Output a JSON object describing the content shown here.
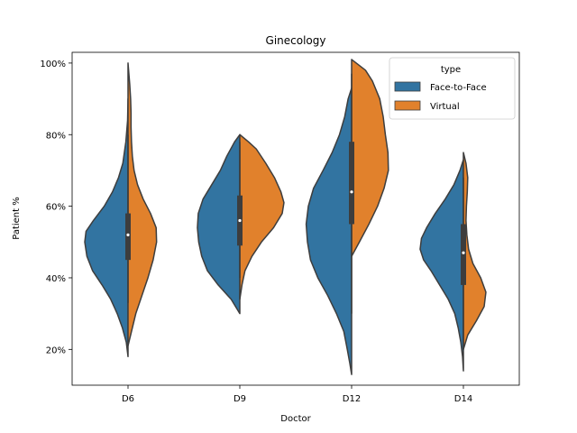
{
  "chart_data": {
    "type": "violin",
    "title": "Ginecology",
    "xlabel": "Doctor",
    "ylabel": "Patient %",
    "categories": [
      "D6",
      "D9",
      "D12",
      "D14"
    ],
    "yticks": [
      "20%",
      "40%",
      "60%",
      "80%",
      "100%"
    ],
    "ytick_values": [
      20,
      40,
      60,
      80,
      100
    ],
    "ylim": [
      10,
      103
    ],
    "split": true,
    "grid": false,
    "legend": {
      "title": "type",
      "placement": "top-right",
      "entries": [
        {
          "name": "Face-to-Face",
          "color": "#3274a1"
        },
        {
          "name": "Virtual",
          "color": "#e1812c"
        }
      ]
    },
    "series": [
      {
        "name": "Face-to-Face",
        "color": "#3274a1",
        "violins": [
          {
            "profile": [
              [
                18,
                0
              ],
              [
                22,
                0.04
              ],
              [
                26,
                0.13
              ],
              [
                30,
                0.25
              ],
              [
                34,
                0.4
              ],
              [
                38,
                0.6
              ],
              [
                42,
                0.82
              ],
              [
                46,
                0.95
              ],
              [
                50,
                1.0
              ],
              [
                53,
                0.97
              ],
              [
                56,
                0.8
              ],
              [
                60,
                0.55
              ],
              [
                64,
                0.36
              ],
              [
                68,
                0.22
              ],
              [
                72,
                0.12
              ],
              [
                78,
                0.05
              ],
              [
                84,
                0.01
              ],
              [
                90,
                0
              ]
            ]
          },
          {
            "profile": [
              [
                30,
                0
              ],
              [
                34,
                0.2
              ],
              [
                38,
                0.5
              ],
              [
                42,
                0.75
              ],
              [
                46,
                0.88
              ],
              [
                50,
                0.95
              ],
              [
                54,
                0.98
              ],
              [
                58,
                0.96
              ],
              [
                62,
                0.85
              ],
              [
                66,
                0.65
              ],
              [
                70,
                0.45
              ],
              [
                74,
                0.3
              ],
              [
                78,
                0.12
              ],
              [
                80,
                0
              ]
            ]
          },
          {
            "profile": [
              [
                13,
                0
              ],
              [
                16,
                0.04
              ],
              [
                20,
                0.1
              ],
              [
                25,
                0.18
              ],
              [
                30,
                0.35
              ],
              [
                35,
                0.55
              ],
              [
                40,
                0.78
              ],
              [
                45,
                0.95
              ],
              [
                50,
                1.02
              ],
              [
                55,
                1.05
              ],
              [
                60,
                1.0
              ],
              [
                65,
                0.88
              ],
              [
                70,
                0.66
              ],
              [
                75,
                0.45
              ],
              [
                80,
                0.28
              ],
              [
                85,
                0.16
              ],
              [
                90,
                0.08
              ],
              [
                93,
                0
              ]
            ]
          },
          {
            "profile": [
              [
                14,
                0
              ],
              [
                18,
                0.02
              ],
              [
                22,
                0.06
              ],
              [
                26,
                0.12
              ],
              [
                30,
                0.2
              ],
              [
                34,
                0.35
              ],
              [
                38,
                0.55
              ],
              [
                42,
                0.75
              ],
              [
                45,
                0.92
              ],
              [
                48,
                1.0
              ],
              [
                51,
                0.97
              ],
              [
                54,
                0.85
              ],
              [
                58,
                0.65
              ],
              [
                62,
                0.42
              ],
              [
                66,
                0.22
              ],
              [
                70,
                0.08
              ],
              [
                73,
                0
              ]
            ]
          }
        ]
      },
      {
        "name": "Virtual",
        "color": "#e1812c",
        "violins": [
          {
            "profile": [
              [
                21,
                0
              ],
              [
                25,
                0.08
              ],
              [
                30,
                0.18
              ],
              [
                35,
                0.32
              ],
              [
                40,
                0.46
              ],
              [
                45,
                0.58
              ],
              [
                50,
                0.66
              ],
              [
                54,
                0.65
              ],
              [
                58,
                0.52
              ],
              [
                62,
                0.35
              ],
              [
                66,
                0.22
              ],
              [
                70,
                0.14
              ],
              [
                74,
                0.1
              ],
              [
                78,
                0.08
              ],
              [
                82,
                0.07
              ],
              [
                86,
                0.07
              ],
              [
                90,
                0.06
              ],
              [
                94,
                0.04
              ],
              [
                97,
                0.02
              ],
              [
                100,
                0
              ]
            ]
          },
          {
            "profile": [
              [
                34,
                0
              ],
              [
                38,
                0.05
              ],
              [
                42,
                0.12
              ],
              [
                46,
                0.28
              ],
              [
                50,
                0.5
              ],
              [
                54,
                0.78
              ],
              [
                58,
                0.98
              ],
              [
                61,
                1.02
              ],
              [
                64,
                0.95
              ],
              [
                68,
                0.8
              ],
              [
                72,
                0.6
              ],
              [
                76,
                0.38
              ],
              [
                78,
                0.2
              ],
              [
                80,
                0
              ]
            ]
          },
          {
            "profile": [
              [
                46,
                0
              ],
              [
                50,
                0.18
              ],
              [
                55,
                0.4
              ],
              [
                60,
                0.6
              ],
              [
                65,
                0.75
              ],
              [
                70,
                0.85
              ],
              [
                75,
                0.84
              ],
              [
                80,
                0.78
              ],
              [
                85,
                0.73
              ],
              [
                90,
                0.65
              ],
              [
                95,
                0.48
              ],
              [
                98,
                0.32
              ],
              [
                101,
                0
              ]
            ]
          },
          {
            "profile": [
              [
                20,
                0
              ],
              [
                24,
                0.1
              ],
              [
                28,
                0.3
              ],
              [
                32,
                0.48
              ],
              [
                36,
                0.52
              ],
              [
                40,
                0.4
              ],
              [
                44,
                0.22
              ],
              [
                48,
                0.12
              ],
              [
                52,
                0.08
              ],
              [
                56,
                0.06
              ],
              [
                60,
                0.07
              ],
              [
                64,
                0.09
              ],
              [
                68,
                0.1
              ],
              [
                72,
                0.06
              ],
              [
                75,
                0
              ]
            ]
          }
        ]
      }
    ],
    "boxes": [
      {
        "q1": 45,
        "q3": 58,
        "median": 52,
        "lower": 33,
        "upper": 80
      },
      {
        "q1": 49,
        "q3": 63,
        "median": 56,
        "lower": 40,
        "upper": 78
      },
      {
        "q1": 55,
        "q3": 78,
        "median": 64,
        "lower": 30,
        "upper": 97
      },
      {
        "q1": 38,
        "q3": 55,
        "median": 47,
        "lower": 20,
        "upper": 68
      }
    ]
  }
}
